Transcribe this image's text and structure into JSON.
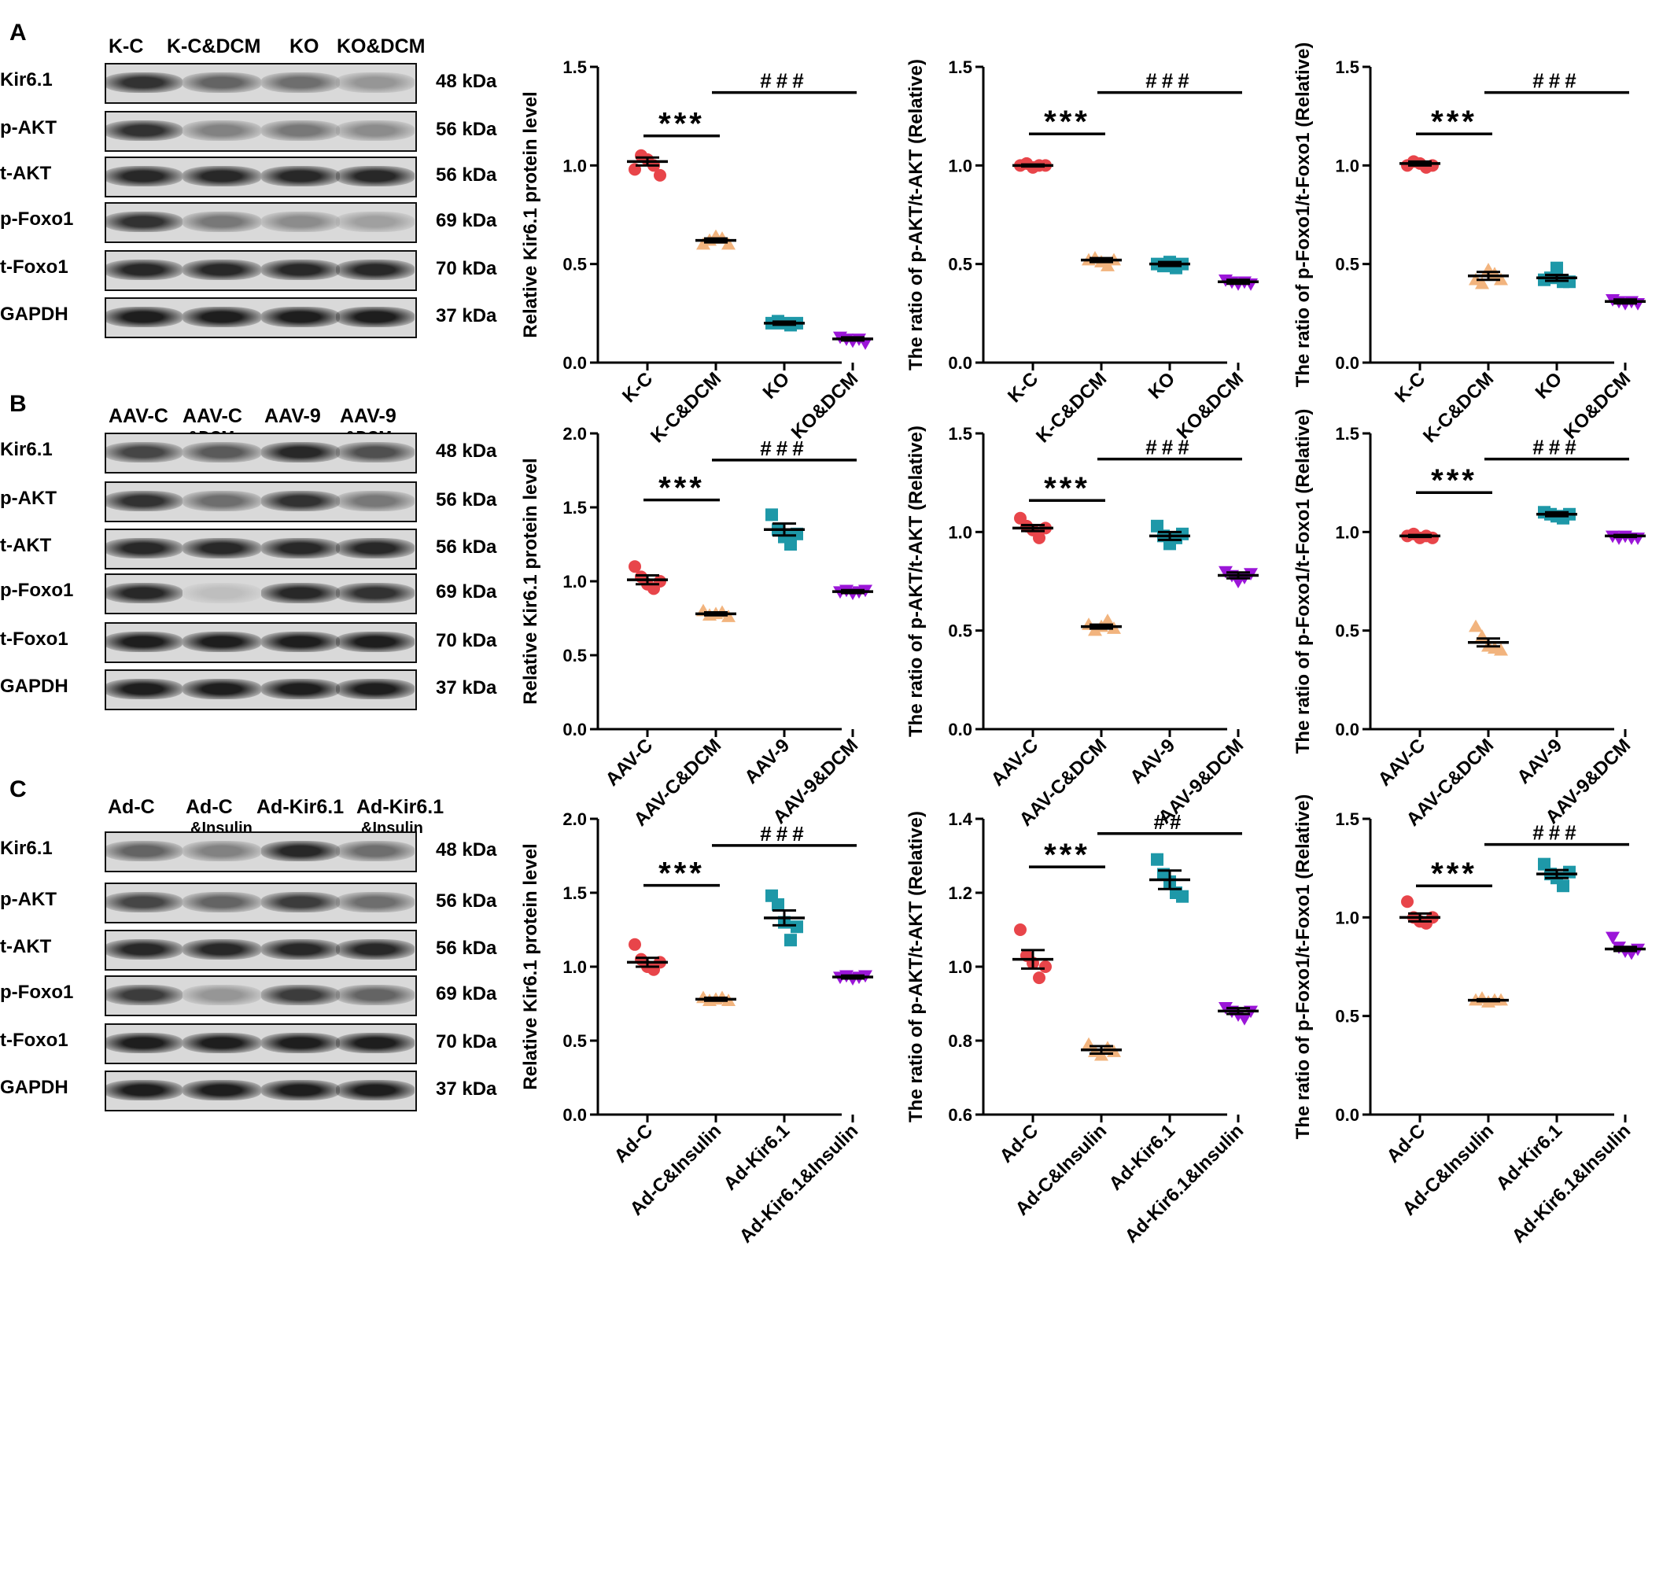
{
  "panels": [
    {
      "letter": "A",
      "lanes": [
        {
          "label": "K-C",
          "sub": ""
        },
        {
          "label": "K-C&DCM",
          "sub": ""
        },
        {
          "label": "KO",
          "sub": ""
        },
        {
          "label": "KO&DCM",
          "sub": ""
        }
      ],
      "blots": [
        {
          "name": "Kir6.1",
          "kda": "48 kDa",
          "bands": [
            0.85,
            0.6,
            0.55,
            0.35
          ]
        },
        {
          "name": "p-AKT",
          "kda": "56 kDa",
          "bands": [
            0.85,
            0.45,
            0.5,
            0.4
          ]
        },
        {
          "name": "t-AKT",
          "kda": "56 kDa",
          "bands": [
            0.9,
            0.9,
            0.9,
            0.9
          ]
        },
        {
          "name": "p-Foxo1",
          "kda": "69 kDa",
          "bands": [
            0.85,
            0.5,
            0.4,
            0.3
          ]
        },
        {
          "name": "t-Foxo1",
          "kda": "70 kDa",
          "bands": [
            0.9,
            0.9,
            0.9,
            0.9
          ]
        },
        {
          "name": "GAPDH",
          "kda": "37 kDa",
          "bands": [
            0.95,
            0.95,
            0.95,
            0.95
          ]
        }
      ]
    },
    {
      "letter": "B",
      "lanes": [
        {
          "label": "AAV-C",
          "sub": ""
        },
        {
          "label": "AAV-C",
          "sub": "&DCM"
        },
        {
          "label": "AAV-9",
          "sub": ""
        },
        {
          "label": "AAV-9",
          "sub": "&DCM"
        }
      ],
      "blots": [
        {
          "name": "Kir6.1",
          "kda": "48 kDa",
          "bands": [
            0.75,
            0.65,
            0.9,
            0.7
          ]
        },
        {
          "name": "p-AKT",
          "kda": "56 kDa",
          "bands": [
            0.85,
            0.55,
            0.85,
            0.5
          ]
        },
        {
          "name": "t-AKT",
          "kda": "56 kDa",
          "bands": [
            0.9,
            0.9,
            0.9,
            0.9
          ]
        },
        {
          "name": "p-Foxo1",
          "kda": "69 kDa",
          "bands": [
            0.9,
            0.15,
            0.9,
            0.85
          ]
        },
        {
          "name": "t-Foxo1",
          "kda": "70 kDa",
          "bands": [
            0.95,
            0.95,
            0.95,
            0.95
          ]
        },
        {
          "name": "GAPDH",
          "kda": "37 kDa",
          "bands": [
            0.95,
            0.95,
            0.95,
            0.95
          ]
        }
      ]
    },
    {
      "letter": "C",
      "lanes": [
        {
          "label": "Ad-C",
          "sub": ""
        },
        {
          "label": "Ad-C",
          "sub": "&Insulin"
        },
        {
          "label": "Ad-Kir6.1",
          "sub": ""
        },
        {
          "label": "Ad-Kir6.1",
          "sub": "&Insulin"
        }
      ],
      "blots": [
        {
          "name": "Kir6.1",
          "kda": "48 kDa",
          "bands": [
            0.6,
            0.45,
            0.9,
            0.55
          ]
        },
        {
          "name": "p-AKT",
          "kda": "56 kDa",
          "bands": [
            0.75,
            0.6,
            0.8,
            0.55
          ]
        },
        {
          "name": "t-AKT",
          "kda": "56 kDa",
          "bands": [
            0.9,
            0.9,
            0.9,
            0.9
          ]
        },
        {
          "name": "p-Foxo1",
          "kda": "69 kDa",
          "bands": [
            0.8,
            0.35,
            0.8,
            0.6
          ]
        },
        {
          "name": "t-Foxo1",
          "kda": "70 kDa",
          "bands": [
            0.95,
            0.95,
            0.95,
            0.95
          ]
        },
        {
          "name": "GAPDH",
          "kda": "37 kDa",
          "bands": [
            0.95,
            0.95,
            0.95,
            0.95
          ]
        }
      ]
    }
  ],
  "colors": {
    "group1": "#e8454a",
    "group2": "#f2b47e",
    "group3": "#1e98a8",
    "group4": "#9b16d8"
  },
  "chart_data": [
    {
      "type": "scatter",
      "row": 0,
      "col": 0,
      "ylabel": "Relative Kir6.1 protein level",
      "categories": [
        "K-C",
        "K-C&DCM",
        "KO",
        "KO&DCM"
      ],
      "ylim": [
        0,
        1.5
      ],
      "yticks": [
        0.0,
        0.5,
        1.0,
        1.5
      ],
      "means": [
        1.02,
        0.62,
        0.2,
        0.12
      ],
      "sems": [
        0.02,
        0.01,
        0.008,
        0.008
      ],
      "points": [
        [
          0.98,
          1.05,
          1.03,
          1.0,
          0.95
        ],
        [
          0.6,
          0.62,
          0.64,
          0.63,
          0.6
        ],
        [
          0.2,
          0.21,
          0.2,
          0.19,
          0.2
        ],
        [
          0.13,
          0.12,
          0.11,
          0.12,
          0.1
        ]
      ],
      "sig": [
        {
          "label": "***",
          "from": 0,
          "to": 1,
          "y": 1.15
        },
        {
          "label": "###",
          "from": 1,
          "to": 3,
          "y": 1.37
        }
      ]
    },
    {
      "type": "scatter",
      "row": 0,
      "col": 1,
      "ylabel": "The ratio of p-AKT/t-AKT (Relative)",
      "categories": [
        "K-C",
        "K-C&DCM",
        "KO",
        "KO&DCM"
      ],
      "ylim": [
        0,
        1.5
      ],
      "yticks": [
        0.0,
        0.5,
        1.0,
        1.5
      ],
      "means": [
        1.0,
        0.52,
        0.5,
        0.41
      ],
      "sems": [
        0.005,
        0.01,
        0.01,
        0.01
      ],
      "points": [
        [
          1.0,
          1.01,
          0.99,
          1.0,
          1.0
        ],
        [
          0.52,
          0.53,
          0.51,
          0.49,
          0.52
        ],
        [
          0.5,
          0.49,
          0.51,
          0.48,
          0.5
        ],
        [
          0.42,
          0.41,
          0.4,
          0.41,
          0.4
        ]
      ],
      "sig": [
        {
          "label": "***",
          "from": 0,
          "to": 1,
          "y": 1.16
        },
        {
          "label": "###",
          "from": 1,
          "to": 3,
          "y": 1.37
        }
      ]
    },
    {
      "type": "scatter",
      "row": 0,
      "col": 2,
      "ylabel": "The ratio of p-Foxo1/t-Foxo1 (Relative)",
      "categories": [
        "K-C",
        "K-C&DCM",
        "KO",
        "KO&DCM"
      ],
      "ylim": [
        0,
        1.5
      ],
      "yticks": [
        0.0,
        0.5,
        1.0,
        1.5
      ],
      "means": [
        1.01,
        0.44,
        0.43,
        0.31
      ],
      "sems": [
        0.01,
        0.02,
        0.015,
        0.01
      ],
      "points": [
        [
          1.0,
          1.02,
          1.01,
          0.99,
          1.0
        ],
        [
          0.42,
          0.4,
          0.47,
          0.45,
          0.42
        ],
        [
          0.42,
          0.43,
          0.48,
          0.41,
          0.41
        ],
        [
          0.32,
          0.31,
          0.3,
          0.31,
          0.3
        ]
      ],
      "sig": [
        {
          "label": "***",
          "from": 0,
          "to": 1,
          "y": 1.16
        },
        {
          "label": "###",
          "from": 1,
          "to": 3,
          "y": 1.37
        }
      ]
    },
    {
      "type": "scatter",
      "row": 1,
      "col": 0,
      "ylabel": "Relative Kir6.1 protein level",
      "categories": [
        "AAV-C",
        "AAV-C&DCM",
        "AAV-9",
        "AAV-9&DCM"
      ],
      "ylim": [
        0,
        2.0
      ],
      "yticks": [
        0.0,
        0.5,
        1.0,
        1.5,
        2.0
      ],
      "means": [
        1.01,
        0.78,
        1.35,
        0.93
      ],
      "sems": [
        0.03,
        0.01,
        0.04,
        0.01
      ],
      "points": [
        [
          1.1,
          1.03,
          0.98,
          0.95,
          1.0
        ],
        [
          0.8,
          0.77,
          0.78,
          0.79,
          0.76
        ],
        [
          1.45,
          1.35,
          1.3,
          1.25,
          1.32
        ],
        [
          0.93,
          0.94,
          0.92,
          0.93,
          0.94
        ]
      ],
      "sig": [
        {
          "label": "***",
          "from": 0,
          "to": 1,
          "y": 1.55
        },
        {
          "label": "###",
          "from": 1,
          "to": 3,
          "y": 1.82
        }
      ]
    },
    {
      "type": "scatter",
      "row": 1,
      "col": 1,
      "ylabel": "The ratio of p-AKT/t-AKT (Relative)",
      "categories": [
        "AAV-C",
        "AAV-C&DCM",
        "AAV-9",
        "AAV-9&DCM"
      ],
      "ylim": [
        0,
        1.5
      ],
      "yticks": [
        0.0,
        0.5,
        1.0,
        1.5
      ],
      "means": [
        1.02,
        0.52,
        0.98,
        0.78
      ],
      "sems": [
        0.015,
        0.01,
        0.02,
        0.015
      ],
      "points": [
        [
          1.07,
          1.03,
          1.01,
          0.97,
          1.02
        ],
        [
          0.53,
          0.5,
          0.52,
          0.55,
          0.51
        ],
        [
          1.03,
          0.98,
          0.94,
          0.97,
          0.99
        ],
        [
          0.8,
          0.78,
          0.75,
          0.77,
          0.79
        ]
      ],
      "sig": [
        {
          "label": "***",
          "from": 0,
          "to": 1,
          "y": 1.16
        },
        {
          "label": "###",
          "from": 1,
          "to": 3,
          "y": 1.37
        }
      ]
    },
    {
      "type": "scatter",
      "row": 1,
      "col": 2,
      "ylabel": "The ratio of p-Foxo1/t-Foxo1 (Relative)",
      "categories": [
        "AAV-C",
        "AAV-C&DCM",
        "AAV-9",
        "AAV-9&DCM"
      ],
      "ylim": [
        0,
        1.5
      ],
      "yticks": [
        0.0,
        0.5,
        1.0,
        1.5
      ],
      "means": [
        0.98,
        0.44,
        1.09,
        0.98
      ],
      "sems": [
        0.005,
        0.02,
        0.01,
        0.005
      ],
      "points": [
        [
          0.98,
          0.99,
          0.97,
          0.98,
          0.97
        ],
        [
          0.52,
          0.47,
          0.42,
          0.41,
          0.4
        ],
        [
          1.1,
          1.09,
          1.08,
          1.07,
          1.09
        ],
        [
          0.98,
          0.97,
          0.98,
          0.97,
          0.97
        ]
      ],
      "sig": [
        {
          "label": "***",
          "from": 0,
          "to": 1,
          "y": 1.2
        },
        {
          "label": "###",
          "from": 1,
          "to": 3,
          "y": 1.37
        }
      ]
    },
    {
      "type": "scatter",
      "row": 2,
      "col": 0,
      "ylabel": "Relative Kir6.1 protein level",
      "categories": [
        "Ad-C",
        "Ad-C&Insulin",
        "Ad-Kir6.1",
        "Ad-Kir6.1&Insulin"
      ],
      "ylim": [
        0,
        2.0
      ],
      "yticks": [
        0.0,
        0.5,
        1.0,
        1.5,
        2.0
      ],
      "means": [
        1.03,
        0.78,
        1.33,
        0.93
      ],
      "sems": [
        0.03,
        0.01,
        0.05,
        0.01
      ],
      "points": [
        [
          1.15,
          1.05,
          1.0,
          0.98,
          1.03
        ],
        [
          0.79,
          0.77,
          0.78,
          0.79,
          0.77
        ],
        [
          1.48,
          1.42,
          1.3,
          1.18,
          1.27
        ],
        [
          0.93,
          0.94,
          0.92,
          0.93,
          0.94
        ]
      ],
      "sig": [
        {
          "label": "***",
          "from": 0,
          "to": 1,
          "y": 1.55
        },
        {
          "label": "###",
          "from": 1,
          "to": 3,
          "y": 1.82
        }
      ]
    },
    {
      "type": "scatter",
      "row": 2,
      "col": 1,
      "ylabel": "The ratio of p-AKT/t-AKT (Relative)",
      "categories": [
        "Ad-C",
        "Ad-C&Insulin",
        "Ad-Kir6.1",
        "Ad-Kir6.1&Insulin"
      ],
      "ylim": [
        0.6,
        1.4
      ],
      "yticks": [
        0.6,
        0.8,
        1.0,
        1.2,
        1.4
      ],
      "means": [
        1.02,
        0.775,
        1.235,
        0.88
      ],
      "sems": [
        0.025,
        0.01,
        0.025,
        0.008
      ],
      "points": [
        [
          1.1,
          1.03,
          1.01,
          0.97,
          1.0
        ],
        [
          0.79,
          0.77,
          0.76,
          0.78,
          0.77
        ],
        [
          1.29,
          1.25,
          1.23,
          1.2,
          1.19
        ],
        [
          0.89,
          0.88,
          0.87,
          0.86,
          0.88
        ]
      ],
      "sig": [
        {
          "label": "***",
          "from": 0,
          "to": 1,
          "y": 1.27
        },
        {
          "label": "##",
          "from": 1,
          "to": 3,
          "y": 1.36
        }
      ]
    },
    {
      "type": "scatter",
      "row": 2,
      "col": 2,
      "ylabel": "The ratio of p-Foxo1/t-Foxo1 (Relative)",
      "categories": [
        "Ad-C",
        "Ad-C&Insulin",
        "Ad-Kir6.1",
        "Ad-Kir6.1&Insulin"
      ],
      "ylim": [
        0,
        1.5
      ],
      "yticks": [
        0.0,
        0.5,
        1.0,
        1.5
      ],
      "means": [
        1.0,
        0.58,
        1.22,
        0.84
      ],
      "sems": [
        0.02,
        0.005,
        0.02,
        0.01
      ],
      "points": [
        [
          1.08,
          1.0,
          0.98,
          0.97,
          1.0
        ],
        [
          0.58,
          0.59,
          0.57,
          0.58,
          0.58
        ],
        [
          1.27,
          1.22,
          1.2,
          1.16,
          1.23
        ],
        [
          0.9,
          0.85,
          0.83,
          0.82,
          0.84
        ]
      ],
      "sig": [
        {
          "label": "***",
          "from": 0,
          "to": 1,
          "y": 1.16
        },
        {
          "label": "###",
          "from": 1,
          "to": 3,
          "y": 1.37
        }
      ]
    }
  ]
}
